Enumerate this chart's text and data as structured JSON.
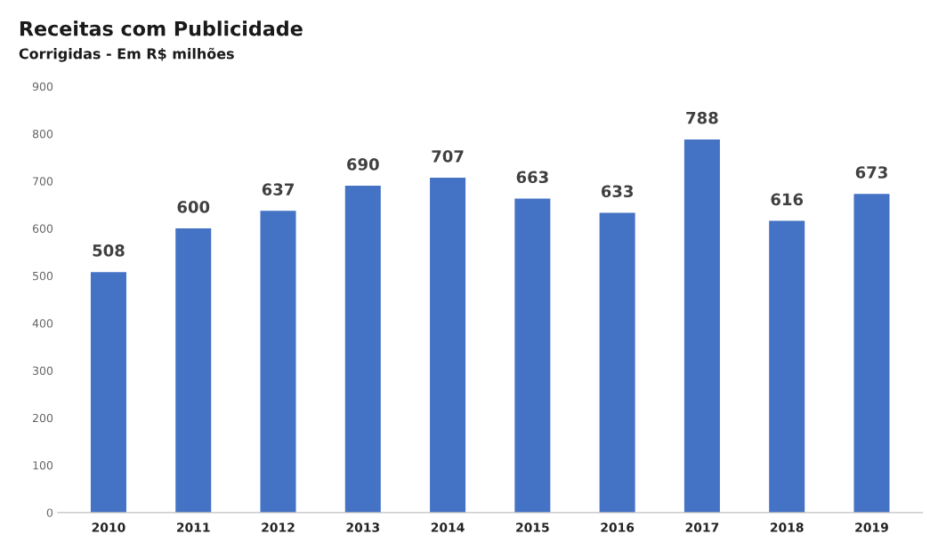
{
  "chart_data": {
    "type": "bar",
    "title": "Receitas com Publicidade",
    "subtitle": "Corrigidas - Em R$ milhões",
    "categories": [
      "2010",
      "2011",
      "2012",
      "2013",
      "2014",
      "2015",
      "2016",
      "2017",
      "2018",
      "2019"
    ],
    "values": [
      508,
      600,
      637,
      690,
      707,
      663,
      633,
      788,
      616,
      673
    ],
    "color": "#4472c4",
    "ylim": [
      0,
      900
    ],
    "yticks": [
      0,
      100,
      200,
      300,
      400,
      500,
      600,
      700,
      800,
      900
    ],
    "grid": false,
    "data_labels": true
  }
}
